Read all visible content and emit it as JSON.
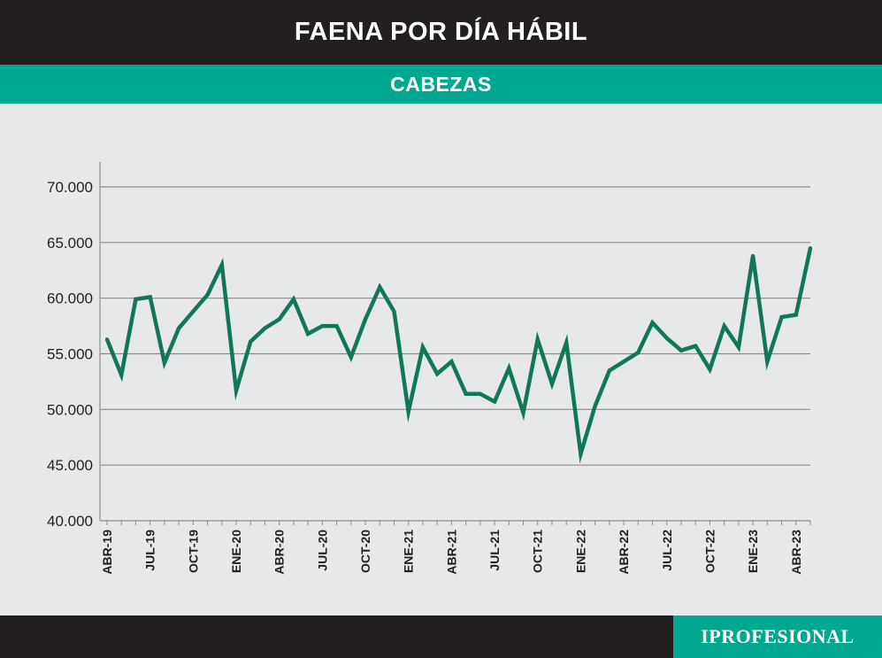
{
  "header": {
    "title": "FAENA POR DÍA HÁBIL",
    "subtitle": "CABEZAS"
  },
  "footer": {
    "brand": "IPROFESIONAL"
  },
  "colors": {
    "title_bar": "#231f20",
    "accent": "#00a88f",
    "line": "#10775a",
    "background": "#e7e8e9",
    "grid": "#8c8c8c"
  },
  "chart_data": {
    "type": "line",
    "ylim": [
      40000,
      70000
    ],
    "yticks": [
      40000,
      45000,
      50000,
      55000,
      60000,
      65000,
      70000
    ],
    "ytick_labels": [
      "40.000",
      "45.000",
      "50.000",
      "55.000",
      "60.000",
      "65.000",
      "70.000"
    ],
    "grid": "horizontal",
    "xtick_labels": [
      {
        "index": 0,
        "label": "ABR-19"
      },
      {
        "index": 3,
        "label": "JUL-19"
      },
      {
        "index": 6,
        "label": "OCT-19"
      },
      {
        "index": 9,
        "label": "ENE-20"
      },
      {
        "index": 12,
        "label": "ABR-20"
      },
      {
        "index": 15,
        "label": "JUL-20"
      },
      {
        "index": 18,
        "label": "OCT-20"
      },
      {
        "index": 21,
        "label": "ENE-21"
      },
      {
        "index": 24,
        "label": "ABR-21"
      },
      {
        "index": 27,
        "label": "JUL-21"
      },
      {
        "index": 30,
        "label": "OCT-21"
      },
      {
        "index": 33,
        "label": "ENE-22"
      },
      {
        "index": 36,
        "label": "ABR-22"
      },
      {
        "index": 39,
        "label": "JUL-22"
      },
      {
        "index": 42,
        "label": "OCT-22"
      },
      {
        "index": 45,
        "label": "ENE-23"
      },
      {
        "index": 48,
        "label": "ABR-23"
      }
    ],
    "values": [
      56300,
      53100,
      59900,
      60100,
      54200,
      57300,
      58800,
      60300,
      63000,
      51700,
      56100,
      57300,
      58100,
      59900,
      56800,
      57500,
      57500,
      54700,
      58100,
      61000,
      58800,
      49800,
      55600,
      53200,
      54300,
      51400,
      51400,
      50700,
      53700,
      49700,
      56300,
      52300,
      56000,
      46000,
      50300,
      53500,
      54300,
      55100,
      57800,
      56400,
      55300,
      55700,
      53600,
      57500,
      55600,
      63800,
      54300,
      58300,
      58500,
      64500
    ]
  }
}
